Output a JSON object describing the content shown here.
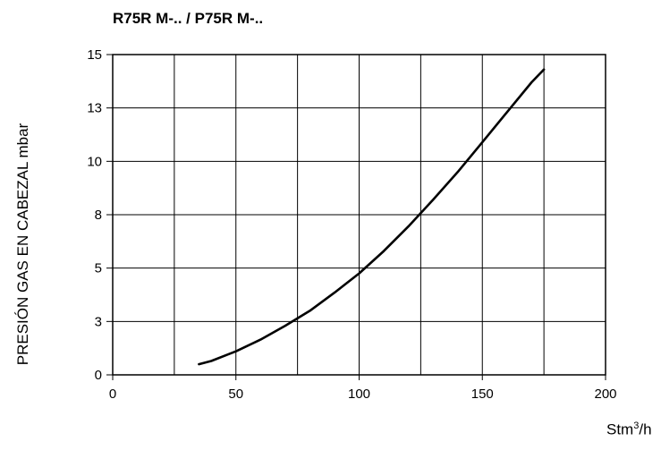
{
  "chart_data": {
    "type": "line",
    "title": "R75R M-.. / P75R M-..",
    "ylabel": "PRESIÓN GAS EN CABEZAL mbar",
    "xlabel_main": "Stm",
    "xlabel_sup": "3",
    "xlabel_tail": "/h",
    "xlim": [
      0,
      200
    ],
    "ylim": [
      0,
      15
    ],
    "x_ticks": [
      0,
      50,
      100,
      150,
      200
    ],
    "x_tick_labels": [
      "0",
      "50",
      "100",
      "150",
      "200"
    ],
    "y_ticks": [
      0,
      2.5,
      5,
      7.5,
      10,
      12.5,
      15
    ],
    "y_tick_labels": [
      "0",
      "3",
      "5",
      "8",
      "10",
      "13",
      "15"
    ],
    "grid": true,
    "series": [
      {
        "x": [
          35,
          40,
          50,
          60,
          70,
          80,
          90,
          100,
          110,
          120,
          130,
          140,
          150,
          160,
          170,
          175
        ],
        "values": [
          0.5,
          0.65,
          1.1,
          1.65,
          2.3,
          3.0,
          3.85,
          4.75,
          5.8,
          6.95,
          8.2,
          9.5,
          10.9,
          12.3,
          13.7,
          14.3
        ]
      }
    ]
  }
}
